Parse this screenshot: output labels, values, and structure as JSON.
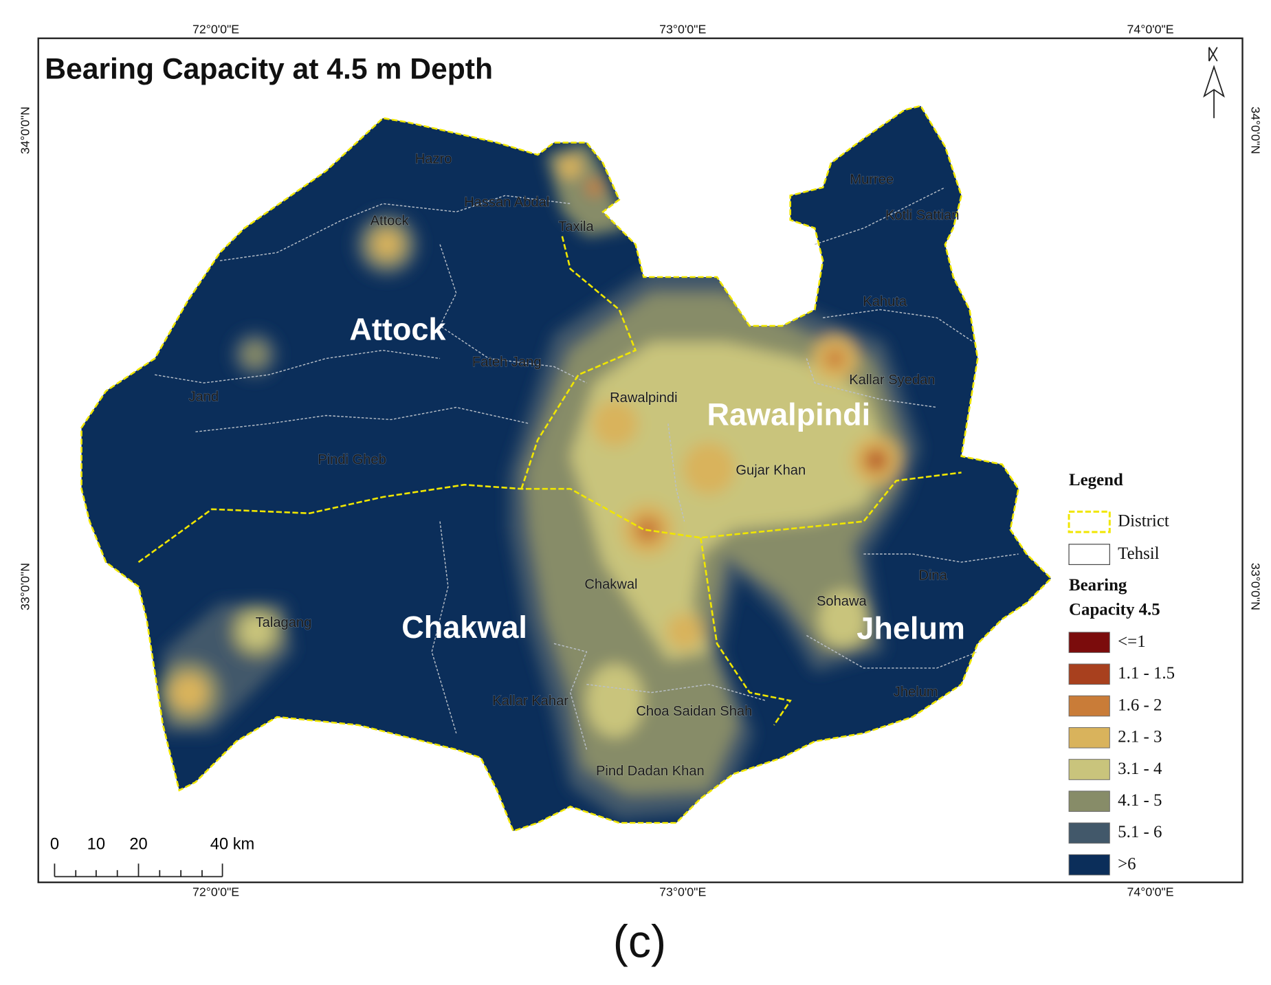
{
  "title": "Bearing Capacity at 4.5 m Depth",
  "longitude_labels": [
    "72°0'0\"E",
    "73°0'0\"E",
    "74°0'0\"E"
  ],
  "latitude_labels": [
    "34°0'0\"N",
    "33°0'0\"N"
  ],
  "districts": [
    "Attock",
    "Rawalpindi",
    "Chakwal",
    "Jhelum"
  ],
  "tehsils": [
    "Hazro",
    "Hassan Abdal",
    "Attock",
    "Taxila",
    "Murree",
    "Kotli Sattian",
    "Kahuta",
    "Fateh Jang",
    "Kallar Syedan",
    "Jand",
    "Rawalpindi",
    "Pindi Gheb",
    "Gujar Khan",
    "Dina",
    "Chakwal",
    "Sohawa",
    "Talagang",
    "Jhelum",
    "Kallar Kahar",
    "Choa Saidan Shah",
    "Pind Dadan Khan"
  ],
  "legend": {
    "title": "Legend",
    "district": "District",
    "tehsil": "Tehsil",
    "ramp_title": [
      "Bearing",
      "Capacity 4.5"
    ],
    "classes": [
      {
        "label": "<=1",
        "color": "#7b0c0c"
      },
      {
        "label": "1.1 - 1.5",
        "color": "#a8401e"
      },
      {
        "label": "1.6 - 2",
        "color": "#c97c38"
      },
      {
        "label": "2.1 - 3",
        "color": "#d9b35c"
      },
      {
        "label": "3.1 - 4",
        "color": "#c9c47c"
      },
      {
        "label": "4.1 - 5",
        "color": "#878c68"
      },
      {
        "label": "5.1 - 6",
        "color": "#42586a"
      },
      {
        "label": ">6",
        "color": "#0b2e5a"
      }
    ]
  },
  "scale_bar": [
    "0",
    "10",
    "20",
    "40 km"
  ],
  "caption": "(c)"
}
